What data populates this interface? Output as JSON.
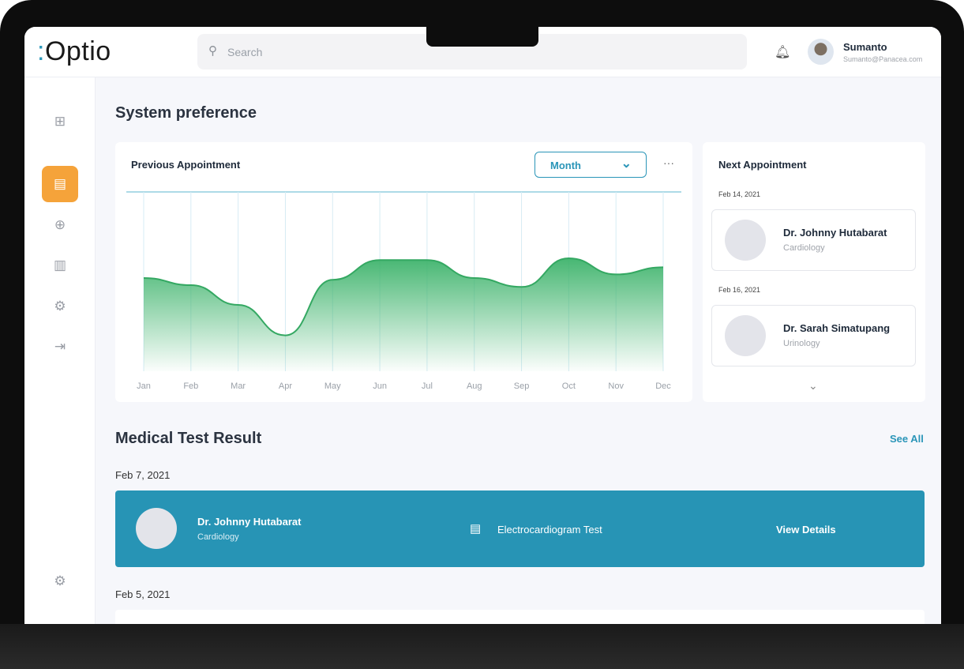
{
  "app": {
    "logo": "Optio"
  },
  "search": {
    "placeholder": "Search"
  },
  "user": {
    "name": "Sumanto",
    "email": "Sumanto@Panacea.com"
  },
  "sidebar": {
    "items": [
      {
        "icon": "dashboard-icon",
        "glyph": "⊞"
      },
      {
        "icon": "clipboard-icon",
        "glyph": "📋",
        "active": true
      },
      {
        "icon": "medical-kit-icon",
        "glyph": "⊕"
      },
      {
        "icon": "chart-icon",
        "glyph": "▥"
      },
      {
        "icon": "settings-icon",
        "glyph": "⚙"
      },
      {
        "icon": "login-icon",
        "glyph": "⇥"
      },
      {
        "icon": "settings-bottom-icon",
        "glyph": "⚙"
      }
    ]
  },
  "page": {
    "title": "System preference"
  },
  "previous": {
    "title": "Previous Appointment",
    "period": "Month",
    "more": "···"
  },
  "chart_data": {
    "type": "area",
    "categories": [
      "Jan",
      "Feb",
      "Mar",
      "Apr",
      "May",
      "Jun",
      "Jul",
      "Aug",
      "Sep",
      "Oct",
      "Nov",
      "Dec"
    ],
    "values": [
      52,
      48,
      37,
      20,
      51,
      62,
      62,
      52,
      47,
      63,
      54,
      58
    ],
    "color": "#3db36b",
    "grid": true
  },
  "next": {
    "title": "Next Appointment",
    "items": [
      {
        "date": "Feb 14, 2021",
        "name": "Dr. Johnny Hutabarat",
        "specialty": "Cardiology"
      },
      {
        "date": "Feb 16, 2021",
        "name": "Dr. Sarah Simatupang",
        "specialty": "Urinology"
      }
    ]
  },
  "results": {
    "title": "Medical Test Result",
    "see_all": "See All",
    "groups": [
      {
        "date": "Feb 7, 2021",
        "name": "Dr. Johnny Hutabarat",
        "specialty": "Cardiology",
        "test": "Electrocardiogram Test",
        "action": "View Details"
      },
      {
        "date": "Feb 5, 2021"
      }
    ]
  },
  "colors": {
    "accent": "#2794b5",
    "active": "#f5a33a",
    "chart": "#3db36b"
  }
}
